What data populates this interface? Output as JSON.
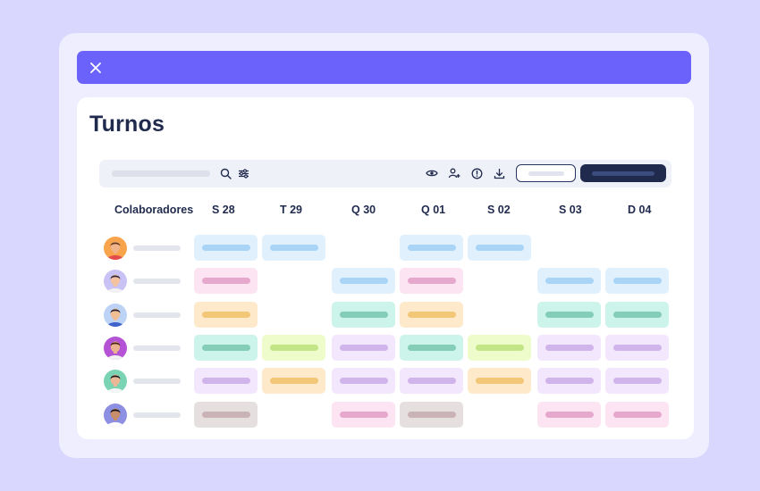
{
  "page": {
    "title": "Turnos"
  },
  "columns": [
    "Colaboradores",
    "S 28",
    "T 29",
    "Q 30",
    "Q 01",
    "S 02",
    "S 03",
    "D 04"
  ],
  "palette": {
    "blue": {
      "bg": "#e0f0fd",
      "pill": "#aad4f5"
    },
    "pink": {
      "bg": "#fde4f2",
      "pill": "#e6a8cd"
    },
    "orange": {
      "bg": "#feeacb",
      "pill": "#f2c778"
    },
    "teal": {
      "bg": "#cdf4ea",
      "pill": "#84cdb6"
    },
    "lime": {
      "bg": "#eefccb",
      "pill": "#c3e585"
    },
    "purple": {
      "bg": "#f3e7fd",
      "pill": "#d0b4ec"
    },
    "grey": {
      "bg": "#e6dfe0",
      "pill": "#cab3b6"
    }
  },
  "rows": [
    {
      "avatar": {
        "skin": "#f0b48a",
        "hair": "#6b3a1c",
        "shirt": "#e44c4c",
        "bg": "#f7a44c"
      },
      "shifts": [
        "blue",
        "blue",
        null,
        "blue",
        "blue",
        null,
        null
      ]
    },
    {
      "avatar": {
        "skin": "#f3c3a1",
        "hair": "#2f2a3d",
        "shirt": "#f2f2f2",
        "bg": "#c9c2f5"
      },
      "shifts": [
        "pink",
        null,
        "blue",
        "pink",
        null,
        "blue",
        "blue"
      ]
    },
    {
      "avatar": {
        "skin": "#f0bd95",
        "hair": "#2a2230",
        "shirt": "#3f63c9",
        "bg": "#bcd3f5"
      },
      "shifts": [
        "orange",
        null,
        "teal",
        "orange",
        null,
        "teal",
        "teal"
      ]
    },
    {
      "avatar": {
        "skin": "#e8b38e",
        "hair": "#4a2415",
        "shirt": "#f1f1f1",
        "bg": "#b453d6"
      },
      "shifts": [
        "teal",
        "lime",
        "purple",
        "teal",
        "lime",
        "purple",
        "purple"
      ]
    },
    {
      "avatar": {
        "skin": "#eab896",
        "hair": "#1e1a1f",
        "shirt": "#f5f5f5",
        "bg": "#7ad3b2"
      },
      "shifts": [
        "purple",
        "orange",
        "purple",
        "purple",
        "orange",
        "purple",
        "purple"
      ]
    },
    {
      "avatar": {
        "skin": "#c88d6a",
        "hair": "#151215",
        "shirt": "#ffffff",
        "bg": "#8c8fe2"
      },
      "shifts": [
        "grey",
        null,
        "pink",
        "grey",
        null,
        "pink",
        "pink"
      ]
    }
  ],
  "icons": {
    "close": "close-icon",
    "search": "search-icon",
    "filter": "filter-icon",
    "view": "eye-icon",
    "add_person": "add-person-icon",
    "info": "info-icon",
    "download": "download-icon"
  }
}
